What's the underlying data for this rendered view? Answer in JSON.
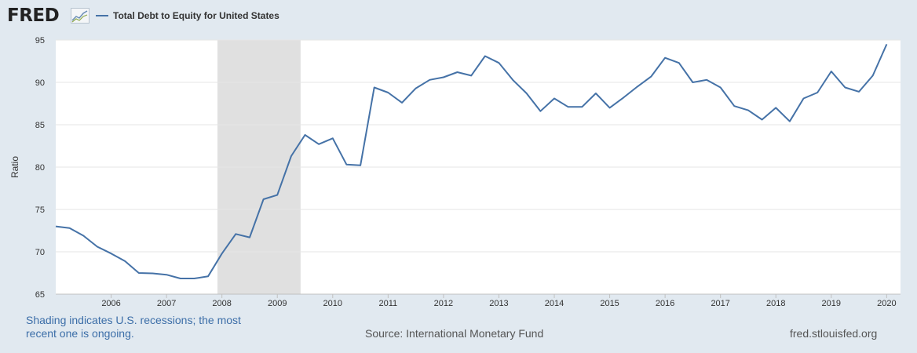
{
  "header": {
    "logo_text": "FRED",
    "legend_label": "Total Debt to Equity for United States"
  },
  "footer": {
    "recession_note": "Shading indicates U.S. recessions; the most recent one is ongoing.",
    "source": "Source: International Monetary Fund",
    "site": "fred.stlouisfed.org"
  },
  "colors": {
    "series": "#4572a7",
    "recession": "#e0e0e0",
    "background": "#e1e9f0"
  },
  "chart_data": {
    "type": "line",
    "title": "",
    "ylabel": "Ratio",
    "xlabel": "",
    "ylim": [
      65,
      95
    ],
    "xlim": [
      2005.0,
      2020.25
    ],
    "y_ticks": [
      65,
      70,
      75,
      80,
      85,
      90,
      95
    ],
    "x_ticks": [
      2006,
      2007,
      2008,
      2009,
      2010,
      2011,
      2012,
      2013,
      2014,
      2015,
      2016,
      2017,
      2018,
      2019,
      2020
    ],
    "grid": "horizontal",
    "recessions": [
      [
        2007.92,
        2009.42
      ]
    ],
    "series": [
      {
        "name": "Total Debt to Equity for United States",
        "x": [
          2005.0,
          2005.25,
          2005.5,
          2005.75,
          2006.0,
          2006.25,
          2006.5,
          2006.75,
          2007.0,
          2007.25,
          2007.5,
          2007.75,
          2008.0,
          2008.25,
          2008.5,
          2008.75,
          2009.0,
          2009.25,
          2009.5,
          2009.75,
          2010.0,
          2010.25,
          2010.5,
          2010.75,
          2011.0,
          2011.25,
          2011.5,
          2011.75,
          2012.0,
          2012.25,
          2012.5,
          2012.75,
          2013.0,
          2013.25,
          2013.5,
          2013.75,
          2014.0,
          2014.25,
          2014.5,
          2014.75,
          2015.0,
          2015.25,
          2015.5,
          2015.75,
          2016.0,
          2016.25,
          2016.5,
          2016.75,
          2017.0,
          2017.25,
          2017.5,
          2017.75,
          2018.0,
          2018.25,
          2018.5,
          2018.75,
          2019.0,
          2019.25,
          2019.5,
          2019.75,
          2020.0
        ],
        "values": [
          73.0,
          72.8,
          71.9,
          70.6,
          69.8,
          68.9,
          67.5,
          67.45,
          67.3,
          66.85,
          66.85,
          67.1,
          69.8,
          72.1,
          71.7,
          76.2,
          76.7,
          81.3,
          83.8,
          82.7,
          83.4,
          80.3,
          80.2,
          89.4,
          88.8,
          87.6,
          89.3,
          90.3,
          90.6,
          91.2,
          90.8,
          93.1,
          92.3,
          90.3,
          88.7,
          86.6,
          88.1,
          87.1,
          87.1,
          88.7,
          87.0,
          88.2,
          89.5,
          90.7,
          92.9,
          92.3,
          90.0,
          90.3,
          89.4,
          87.2,
          86.7,
          85.6,
          87.0,
          85.4,
          88.1,
          88.8,
          91.3,
          89.4,
          88.9,
          90.8,
          94.5
        ]
      }
    ]
  }
}
